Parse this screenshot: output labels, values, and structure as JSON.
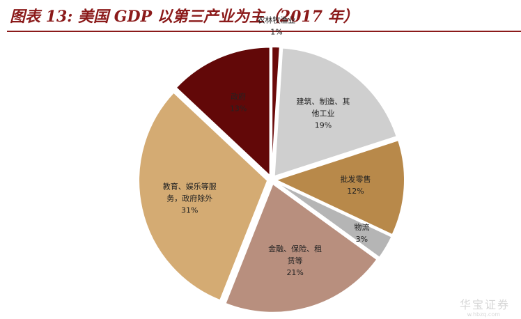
{
  "title": "图表 13: 美国 GDP 以第三产业为主（2017 年）",
  "chart_data": {
    "type": "pie",
    "title": "图表 13: 美国 GDP 以第三产业为主（2017 年）",
    "slices": [
      {
        "label": [
          "农林牧渔业"
        ],
        "value": 1,
        "pct": "1%",
        "color": "#6b0a0a"
      },
      {
        "label": [
          "建筑、制造、其",
          "他工业"
        ],
        "value": 19,
        "pct": "19%",
        "color": "#cfcfcf"
      },
      {
        "label": [
          "批发零售"
        ],
        "value": 12,
        "pct": "12%",
        "color": "#b8894a"
      },
      {
        "label": [
          "物流"
        ],
        "value": 3,
        "pct": "3%",
        "color": "#b5b5b5"
      },
      {
        "label": [
          "金融、保险、租",
          "赁等"
        ],
        "value": 21,
        "pct": "21%",
        "color": "#b88f7e"
      },
      {
        "label": [
          "教育、娱乐等服",
          "务，政府除外"
        ],
        "value": 31,
        "pct": "31%",
        "color": "#d4ab73"
      },
      {
        "label": [
          "政府"
        ],
        "value": 13,
        "pct": "13%",
        "color": "#620808"
      }
    ]
  },
  "watermark": {
    "text": "华宝证券",
    "sub": "w.hbzq.com"
  }
}
